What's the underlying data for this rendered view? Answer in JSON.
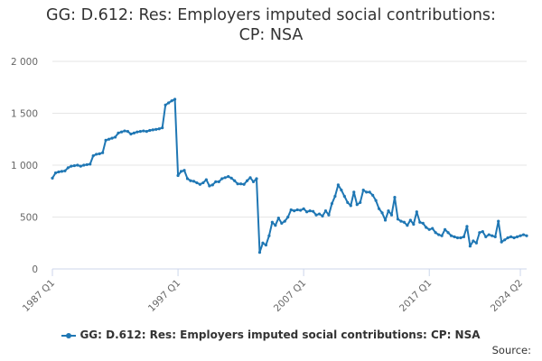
{
  "title_line1": "GG: D.612: Res: Employers imputed social contributions:",
  "title_line2": "CP: NSA",
  "source_label": "Source:",
  "colors": {
    "series": "#1f77b4",
    "grid": "#e6e6e6",
    "axis": "#ccd6eb"
  },
  "chart_data": {
    "type": "line",
    "title": "GG: D.612: Res: Employers imputed social contributions: CP: NSA",
    "xlabel": "",
    "ylabel": "",
    "x_tick_labels": [
      "1987 Q1",
      "1997 Q1",
      "2007 Q1",
      "2017 Q1",
      "2024 Q2"
    ],
    "y_tick_labels": [
      "0",
      "500",
      "1 000",
      "1 500",
      "2 000"
    ],
    "ylim": [
      0,
      2000
    ],
    "frequency": "quarterly",
    "start": "1987 Q1",
    "end": "2024 Q2",
    "grid": true,
    "legend_position": "bottom",
    "series": [
      {
        "name": "GG: D.612: Res: Employers imputed social contributions: CP: NSA",
        "values": [
          875,
          925,
          935,
          940,
          945,
          975,
          990,
          995,
          1000,
          990,
          1000,
          1005,
          1010,
          1090,
          1105,
          1110,
          1120,
          1240,
          1250,
          1260,
          1270,
          1310,
          1320,
          1330,
          1325,
          1300,
          1310,
          1320,
          1325,
          1330,
          1325,
          1335,
          1340,
          1345,
          1350,
          1360,
          1580,
          1600,
          1620,
          1635,
          900,
          940,
          950,
          870,
          850,
          845,
          830,
          815,
          830,
          860,
          800,
          810,
          840,
          840,
          870,
          880,
          890,
          875,
          850,
          820,
          820,
          815,
          850,
          880,
          840,
          870,
          160,
          250,
          230,
          320,
          450,
          420,
          490,
          440,
          460,
          500,
          570,
          560,
          570,
          565,
          580,
          550,
          560,
          555,
          520,
          530,
          510,
          560,
          520,
          630,
          700,
          810,
          760,
          700,
          640,
          610,
          740,
          620,
          640,
          760,
          740,
          740,
          710,
          660,
          580,
          540,
          470,
          560,
          520,
          690,
          480,
          460,
          450,
          420,
          470,
          430,
          550,
          450,
          440,
          400,
          380,
          390,
          350,
          330,
          320,
          380,
          350,
          320,
          310,
          300,
          300,
          310,
          410,
          220,
          270,
          250,
          350,
          360,
          310,
          330,
          320,
          310,
          460,
          260,
          280,
          300,
          310,
          300,
          310,
          320,
          330,
          320
        ]
      }
    ]
  }
}
